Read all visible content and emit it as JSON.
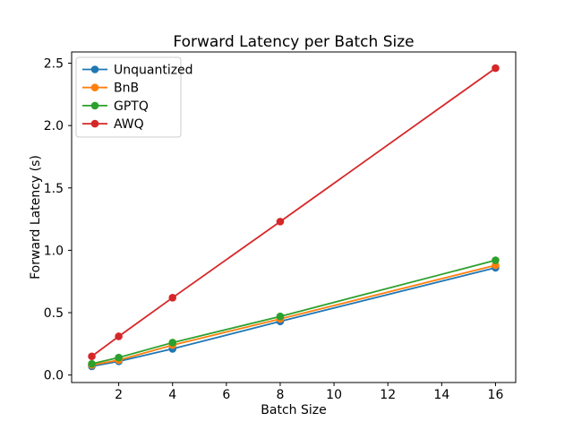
{
  "figure": {
    "background": "#ffffff",
    "spine_color": "#000000",
    "legend_border_color": "#cccccc",
    "legend_background": "rgba(255,255,255,0.85)"
  },
  "chart_data": {
    "type": "line",
    "title": "Forward Latency per Batch Size",
    "xlabel": "Batch Size",
    "ylabel": "Forward Latency (s)",
    "x": [
      1,
      2,
      4,
      8,
      16
    ],
    "series": [
      {
        "name": "Unquantized",
        "color": "#1f77b4",
        "values": [
          0.07,
          0.11,
          0.21,
          0.43,
          0.86
        ]
      },
      {
        "name": "BnB",
        "color": "#ff7f0e",
        "values": [
          0.08,
          0.12,
          0.24,
          0.45,
          0.88
        ]
      },
      {
        "name": "GPTQ",
        "color": "#2ca02c",
        "values": [
          0.09,
          0.14,
          0.26,
          0.47,
          0.92
        ]
      },
      {
        "name": "AWQ",
        "color": "#d62728",
        "values": [
          0.15,
          0.31,
          0.62,
          1.23,
          2.46
        ]
      }
    ],
    "x_ticks": [
      "2",
      "4",
      "6",
      "8",
      "10",
      "12",
      "14",
      "16"
    ],
    "y_ticks": [
      "0.0",
      "0.5",
      "1.0",
      "1.5",
      "2.0",
      "2.5"
    ],
    "xlim": [
      0.25,
      16.75
    ],
    "ylim": [
      -0.06,
      2.59
    ],
    "grid": false,
    "marker": "o",
    "legend_position": "upper left"
  }
}
